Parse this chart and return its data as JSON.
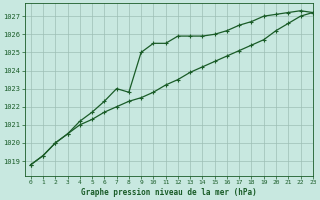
{
  "title": "Graphe pression niveau de la mer (hPa)",
  "background_color": "#c8e8e0",
  "grid_color": "#9dbfb5",
  "line_color": "#1a5c28",
  "xlim": [
    -0.5,
    23
  ],
  "ylim": [
    1018.2,
    1027.7
  ],
  "yticks": [
    1019,
    1020,
    1021,
    1022,
    1023,
    1024,
    1025,
    1026,
    1027
  ],
  "xticks": [
    0,
    1,
    2,
    3,
    4,
    5,
    6,
    7,
    8,
    9,
    10,
    11,
    12,
    13,
    14,
    15,
    16,
    17,
    18,
    19,
    20,
    21,
    22,
    23
  ],
  "series1_x": [
    0,
    1,
    2,
    3,
    4,
    5,
    6,
    7,
    8,
    9,
    10,
    11,
    12,
    13,
    14,
    15,
    16,
    17,
    18,
    19,
    20,
    21,
    22,
    23
  ],
  "series1_y": [
    1018.8,
    1019.3,
    1020.0,
    1020.5,
    1021.2,
    1021.7,
    1022.3,
    1023.0,
    1022.8,
    1025.0,
    1025.5,
    1025.5,
    1025.9,
    1025.9,
    1025.9,
    1026.0,
    1026.2,
    1026.5,
    1026.7,
    1027.0,
    1027.1,
    1027.2,
    1027.3,
    1027.2
  ],
  "series2_x": [
    0,
    1,
    2,
    3,
    4,
    5,
    6,
    7,
    8,
    9,
    10,
    11,
    12,
    13,
    14,
    15,
    16,
    17,
    18,
    19,
    20,
    21,
    22,
    23
  ],
  "series2_y": [
    1018.8,
    1019.3,
    1020.0,
    1020.5,
    1021.0,
    1021.3,
    1021.7,
    1022.0,
    1022.3,
    1022.5,
    1022.8,
    1023.2,
    1023.5,
    1023.9,
    1024.2,
    1024.5,
    1024.8,
    1025.1,
    1025.4,
    1025.7,
    1026.2,
    1026.6,
    1027.0,
    1027.2
  ]
}
